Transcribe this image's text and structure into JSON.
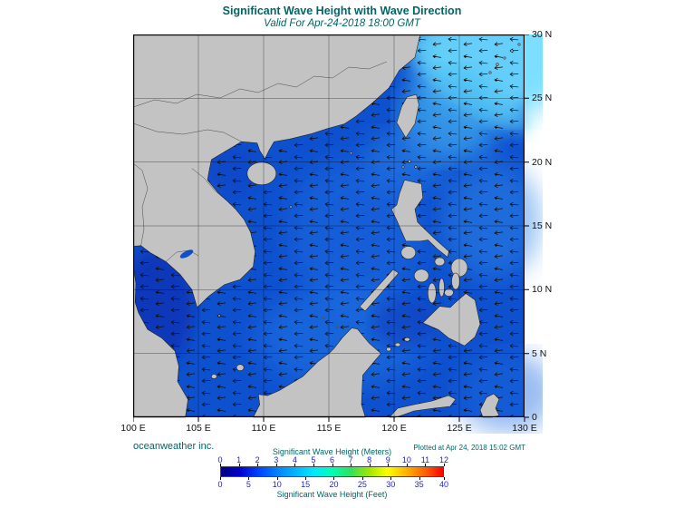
{
  "header": {
    "title": "Significant Wave Height with Wave Direction",
    "subtitle": "Valid For Apr-24-2018 18:00 GMT"
  },
  "map": {
    "lat_labels": [
      "30 N",
      "25 N",
      "20 N",
      "15 N",
      "10 N",
      "5 N",
      "0"
    ],
    "lon_labels": [
      "100 E",
      "105 E",
      "110 E",
      "115 E",
      "120 E",
      "125 E",
      "130 E"
    ]
  },
  "footer": {
    "credit": "oceanweather inc.",
    "plotted": "Plotted at Apr 24, 2018 15:02 GMT"
  },
  "legend": {
    "meters_label": "Significant Wave Height (Meters)",
    "feet_label": "Significant Wave Height (Feet)",
    "meters_ticks": [
      "0",
      "1",
      "2",
      "3",
      "4",
      "5",
      "6",
      "7",
      "8",
      "9",
      "10",
      "11",
      "12"
    ],
    "feet_ticks": [
      "0",
      "5",
      "10",
      "15",
      "20",
      "25",
      "30",
      "35",
      "40"
    ],
    "colors": [
      "#000080",
      "#0000cd",
      "#0040ff",
      "#0080ff",
      "#00b4ff",
      "#00e8ff",
      "#00ffb4",
      "#30e060",
      "#a0e800",
      "#ffff00",
      "#ffb400",
      "#ff6400",
      "#ff0000"
    ]
  },
  "theme": {
    "title_color": "#006666",
    "tick_color": "#2222cc",
    "ocean_base": "#0e51cf",
    "land_color": "#c3c3c3"
  }
}
